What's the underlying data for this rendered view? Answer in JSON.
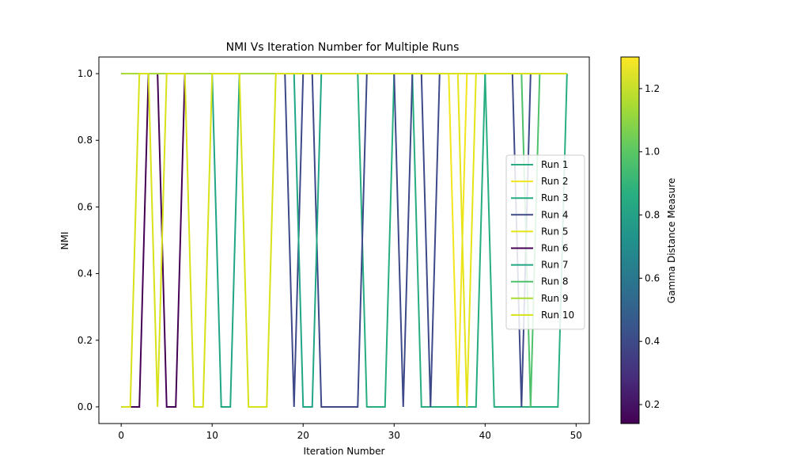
{
  "chart_data": {
    "type": "line",
    "title": "NMI Vs Iteration Number for Multiple Runs",
    "xlabel": "Iteration Number",
    "ylabel": "NMI",
    "xlim": [
      -2.45,
      51.45
    ],
    "ylim": [
      -0.05,
      1.05
    ],
    "xticks": [
      0,
      10,
      20,
      30,
      40,
      50
    ],
    "yticks": [
      0.0,
      0.2,
      0.4,
      0.6,
      0.8,
      1.0
    ],
    "grid": false,
    "legend_position": "center-right",
    "colorbar": {
      "label": "Gamma Distance Measure",
      "min": 0.14,
      "max": 1.3,
      "ticks": [
        0.2,
        0.4,
        0.6,
        0.8,
        1.0,
        1.2
      ],
      "colormap": "viridis"
    },
    "x": [
      0,
      1,
      2,
      3,
      4,
      5,
      6,
      7,
      8,
      9,
      10,
      11,
      12,
      13,
      14,
      15,
      16,
      17,
      18,
      19,
      20,
      21,
      22,
      23,
      24,
      25,
      26,
      27,
      28,
      29,
      30,
      31,
      32,
      33,
      34,
      35,
      36,
      37,
      38,
      39,
      40,
      41,
      42,
      43,
      44,
      45,
      46,
      47,
      48,
      49
    ],
    "series": [
      {
        "name": "Run 1",
        "color": "#29af7f",
        "values": [
          1,
          1,
          1,
          1,
          1,
          1,
          1,
          1,
          1,
          1,
          1,
          1,
          1,
          1,
          1,
          1,
          1,
          1,
          1,
          1,
          1,
          1,
          1,
          1,
          1,
          1,
          1,
          1,
          1,
          1,
          1,
          1,
          1,
          1,
          1,
          1,
          1,
          1,
          1,
          1,
          1,
          0,
          0,
          0,
          0,
          0,
          0,
          0,
          0,
          1
        ]
      },
      {
        "name": "Run 2",
        "color": "#f1e51d",
        "values": [
          1,
          1,
          1,
          1,
          1,
          1,
          1,
          1,
          1,
          1,
          1,
          1,
          1,
          1,
          1,
          1,
          1,
          1,
          1,
          1,
          1,
          1,
          1,
          1,
          1,
          1,
          1,
          1,
          1,
          1,
          1,
          1,
          1,
          1,
          1,
          1,
          1,
          0,
          1,
          1,
          1,
          1,
          1,
          1,
          1,
          1,
          1,
          1,
          1,
          1
        ]
      },
      {
        "name": "Run 3",
        "color": "#27ad81",
        "values": [
          1,
          1,
          1,
          1,
          1,
          1,
          1,
          1,
          1,
          1,
          1,
          1,
          1,
          1,
          1,
          1,
          1,
          1,
          1,
          1,
          1,
          1,
          1,
          1,
          1,
          1,
          1,
          0,
          0,
          0,
          1,
          1,
          1,
          0,
          0,
          0,
          0,
          0,
          0,
          0,
          1,
          1,
          1,
          1,
          1,
          1,
          1,
          1,
          1,
          1
        ]
      },
      {
        "name": "Run 4",
        "color": "#3e4989",
        "values": [
          1,
          1,
          1,
          1,
          1,
          1,
          1,
          1,
          1,
          1,
          1,
          1,
          1,
          1,
          1,
          1,
          1,
          1,
          1,
          0,
          1,
          1,
          0,
          0,
          0,
          0,
          0,
          1,
          1,
          1,
          1,
          0,
          1,
          1,
          0,
          1,
          1,
          1,
          1,
          1,
          1,
          1,
          1,
          1,
          0,
          1,
          1,
          1,
          1,
          1
        ]
      },
      {
        "name": "Run 5",
        "color": "#e5e419",
        "values": [
          1,
          1,
          1,
          1,
          1,
          1,
          1,
          1,
          1,
          1,
          1,
          1,
          1,
          1,
          1,
          1,
          1,
          1,
          1,
          1,
          1,
          1,
          1,
          1,
          1,
          1,
          1,
          1,
          1,
          1,
          1,
          1,
          1,
          1,
          1,
          1,
          1,
          1,
          0,
          1,
          1,
          1,
          1,
          1,
          1,
          1,
          1,
          1,
          1,
          1
        ]
      },
      {
        "name": "Run 6",
        "color": "#440154",
        "values": [
          0,
          0,
          0,
          1,
          1,
          0,
          0,
          1,
          1,
          1,
          1,
          1,
          1,
          1,
          1,
          1,
          1,
          1,
          1,
          1,
          1,
          1,
          1,
          1,
          1,
          1,
          1,
          1,
          1,
          1,
          1,
          1,
          1,
          1,
          1,
          1,
          1,
          1,
          1,
          1,
          1,
          1,
          1,
          1,
          1,
          1,
          1,
          1,
          1,
          1
        ]
      },
      {
        "name": "Run 7",
        "color": "#21a685",
        "values": [
          1,
          1,
          1,
          1,
          1,
          1,
          1,
          1,
          1,
          1,
          1,
          0,
          0,
          1,
          1,
          1,
          1,
          1,
          1,
          1,
          0,
          0,
          1,
          1,
          1,
          1,
          1,
          1,
          1,
          1,
          1,
          1,
          1,
          1,
          1,
          1,
          1,
          1,
          1,
          1,
          1,
          1,
          1,
          1,
          1,
          1,
          1,
          1,
          1,
          1
        ]
      },
      {
        "name": "Run 8",
        "color": "#4fc16b",
        "values": [
          1,
          1,
          1,
          1,
          1,
          1,
          1,
          1,
          1,
          1,
          1,
          1,
          1,
          1,
          1,
          1,
          1,
          1,
          1,
          1,
          1,
          1,
          1,
          1,
          1,
          1,
          1,
          1,
          1,
          1,
          1,
          1,
          1,
          1,
          1,
          1,
          1,
          1,
          1,
          1,
          1,
          1,
          1,
          1,
          1,
          0,
          1,
          1,
          1,
          1
        ]
      },
      {
        "name": "Run 9",
        "color": "#a9db33",
        "values": [
          1,
          1,
          1,
          1,
          1,
          1,
          1,
          1,
          1,
          1,
          1,
          1,
          1,
          1,
          1,
          1,
          1,
          1,
          1,
          1,
          1,
          1,
          1,
          1,
          1,
          1,
          1,
          1,
          1,
          1,
          1,
          1,
          1,
          1,
          1,
          1,
          1,
          1,
          1,
          1,
          1,
          1,
          1,
          1,
          1,
          1,
          1,
          1,
          1,
          1
        ]
      },
      {
        "name": "Run 10",
        "color": "#d8e219",
        "values": [
          0,
          0,
          1,
          1,
          0,
          1,
          1,
          1,
          0,
          0,
          1,
          1,
          1,
          1,
          0,
          0,
          0,
          1,
          1,
          1,
          1,
          1,
          1,
          1,
          1,
          1,
          1,
          1,
          1,
          1,
          1,
          1,
          1,
          1,
          1,
          1,
          1,
          1,
          1,
          1,
          1,
          1,
          1,
          1,
          1,
          1,
          1,
          1,
          1,
          1
        ]
      }
    ]
  }
}
